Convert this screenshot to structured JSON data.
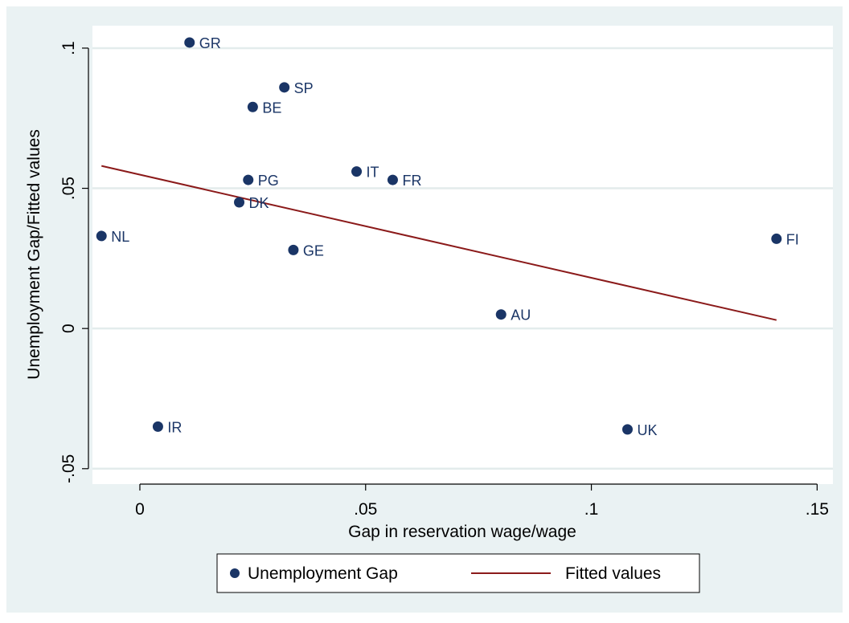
{
  "chart_data": {
    "type": "scatter",
    "xlabel": "Gap in reservation wage/wage",
    "ylabel": "Unemployment Gap/Fitted values",
    "xlim": [
      -0.0105,
      0.1535
    ],
    "ylim": [
      -0.0555,
      0.108
    ],
    "x_ticks": [
      {
        "value": 0,
        "label": "0"
      },
      {
        "value": 0.05,
        "label": ".05"
      },
      {
        "value": 0.1,
        "label": ".1"
      },
      {
        "value": 0.15,
        "label": ".15"
      }
    ],
    "y_ticks": [
      {
        "value": -0.05,
        "label": "-.05"
      },
      {
        "value": 0,
        "label": "0"
      },
      {
        "value": 0.05,
        "label": ".05"
      },
      {
        "value": 0.1,
        "label": ".1"
      }
    ],
    "grid": true,
    "series": [
      {
        "name": "Unemployment Gap",
        "kind": "scatter",
        "color": "#1a3566",
        "points": [
          {
            "label": "GR",
            "x": 0.011,
            "y": 0.102
          },
          {
            "label": "SP",
            "x": 0.032,
            "y": 0.086
          },
          {
            "label": "BE",
            "x": 0.025,
            "y": 0.079
          },
          {
            "label": "IT",
            "x": 0.048,
            "y": 0.056
          },
          {
            "label": "FR",
            "x": 0.056,
            "y": 0.053
          },
          {
            "label": "PG",
            "x": 0.024,
            "y": 0.053
          },
          {
            "label": "DK",
            "x": 0.022,
            "y": 0.045
          },
          {
            "label": "NL",
            "x": -0.0085,
            "y": 0.033
          },
          {
            "label": "FI",
            "x": 0.141,
            "y": 0.032
          },
          {
            "label": "GE",
            "x": 0.034,
            "y": 0.028
          },
          {
            "label": "AU",
            "x": 0.08,
            "y": 0.005
          },
          {
            "label": "IR",
            "x": 0.004,
            "y": -0.035
          },
          {
            "label": "UK",
            "x": 0.108,
            "y": -0.036
          }
        ]
      },
      {
        "name": "Fitted values",
        "kind": "line",
        "color": "#8b1a1a",
        "points": [
          {
            "x": -0.0085,
            "y": 0.058
          },
          {
            "x": 0.141,
            "y": 0.003
          }
        ]
      }
    ],
    "legend_position": "bottom"
  }
}
